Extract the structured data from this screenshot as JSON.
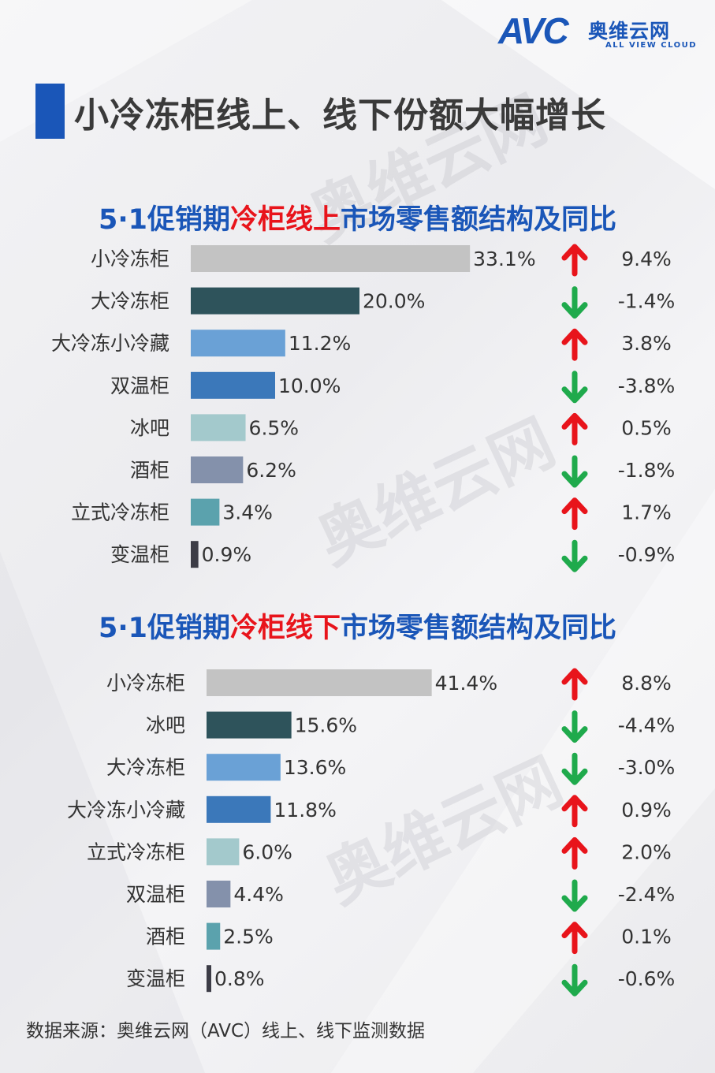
{
  "logo": {
    "brand": "AVC",
    "cn": "奥维云网",
    "en": "ALL VIEW CLOUD"
  },
  "page_title": "小冷冻柜线上、线下份额大幅增长",
  "colors": {
    "blue": "#1a56b8",
    "red": "#e8141b",
    "up_arrow": "#e8141b",
    "down_arrow": "#1faa4c",
    "text": "#333333"
  },
  "source": "数据来源：奥维云网（AVC）线上、线下监测数据",
  "chart_data": [
    {
      "type": "bar",
      "orientation": "horizontal",
      "title_parts": [
        "5·1促销期",
        "冷柜线上",
        "市场零售额结构及同比"
      ],
      "categories": [
        "小冷冻柜",
        "大冷冻柜",
        "大冷冻小冷藏",
        "双温柜",
        "冰吧",
        "酒柜",
        "立式冷冻柜",
        "变温柜"
      ],
      "values": [
        33.1,
        20.0,
        11.2,
        10.0,
        6.5,
        6.2,
        3.4,
        0.9
      ],
      "value_labels": [
        "33.1%",
        "20.0%",
        "11.2%",
        "10.0%",
        "6.5%",
        "6.2%",
        "3.4%",
        "0.9%"
      ],
      "bar_colors": [
        "#c3c3c3",
        "#2e535b",
        "#6aa1d6",
        "#3b78ba",
        "#a3c9cc",
        "#8491ab",
        "#5ba2ad",
        "#3c3c46"
      ],
      "yoy": [
        9.4,
        -1.4,
        3.8,
        -3.8,
        0.5,
        -1.8,
        1.7,
        -0.9
      ],
      "yoy_labels": [
        "9.4%",
        "-1.4%",
        "3.8%",
        "-3.8%",
        "0.5%",
        "-1.8%",
        "1.7%",
        "-0.9%"
      ],
      "unit": "%"
    },
    {
      "type": "bar",
      "orientation": "horizontal",
      "title_parts": [
        "5·1促销期",
        "冷柜线下",
        "市场零售额结构及同比"
      ],
      "categories": [
        "小冷冻柜",
        "冰吧",
        "大冷冻柜",
        "大冷冻小冷藏",
        "立式冷冻柜",
        "双温柜",
        "酒柜",
        "变温柜"
      ],
      "values": [
        41.4,
        15.6,
        13.6,
        11.8,
        6.0,
        4.4,
        2.5,
        0.8
      ],
      "value_labels": [
        "41.4%",
        "15.6%",
        "13.6%",
        "11.8%",
        "6.0%",
        "4.4%",
        "2.5%",
        "0.8%"
      ],
      "bar_colors": [
        "#c3c3c3",
        "#2e535b",
        "#6aa1d6",
        "#3b78ba",
        "#a3c9cc",
        "#8491ab",
        "#5ba2ad",
        "#3c3c46"
      ],
      "yoy": [
        8.8,
        -4.4,
        -3.0,
        0.9,
        2.0,
        -2.4,
        0.1,
        -0.6
      ],
      "yoy_labels": [
        "8.8%",
        "-4.4%",
        "-3.0%",
        "0.9%",
        "2.0%",
        "-2.4%",
        "0.1%",
        "-0.6%"
      ],
      "unit": "%"
    }
  ]
}
